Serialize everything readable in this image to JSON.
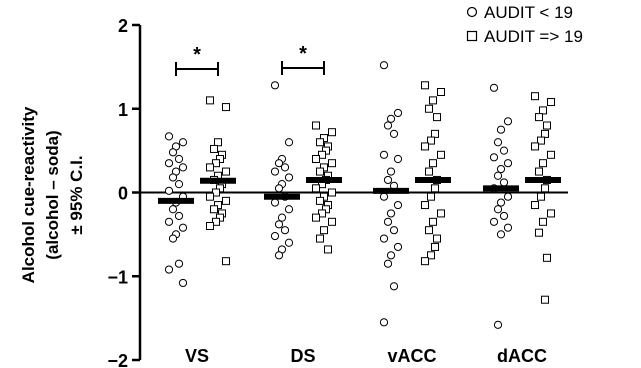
{
  "chart_data": {
    "type": "scatter",
    "title": "",
    "ylabel_lines": [
      "Alcohol cue-reactivity",
      "(alcohol – soda)",
      "± 95% C.I."
    ],
    "ylim": [
      -2,
      2
    ],
    "yticks": [
      2,
      1,
      0,
      -1,
      -2
    ],
    "ytick_labels": [
      "2",
      "1",
      "0",
      "−1",
      "−2"
    ],
    "categories": [
      "VS",
      "DS",
      "vACC",
      "dACC"
    ],
    "legend": {
      "placement": "top-right",
      "entries": [
        {
          "name": "AUDIT < 19",
          "marker": "circle"
        },
        {
          "name": "AUDIT => 19",
          "marker": "square"
        }
      ]
    },
    "series": [
      {
        "name": "AUDIT < 19",
        "marker": "circle",
        "means": [
          -0.1,
          -0.05,
          0.02,
          0.05
        ],
        "points": [
          [
            0.67,
            0.6,
            0.55,
            0.48,
            0.4,
            0.35,
            0.3,
            0.25,
            0.18,
            0.1,
            0.02,
            -0.05,
            -0.12,
            -0.2,
            -0.28,
            -0.35,
            -0.42,
            -0.5,
            -0.55,
            -0.85,
            -0.92,
            -1.08
          ],
          [
            1.28,
            0.6,
            0.4,
            0.35,
            0.3,
            0.25,
            0.18,
            0.1,
            0.05,
            -0.05,
            -0.12,
            -0.2,
            -0.3,
            -0.38,
            -0.45,
            -0.52,
            -0.6,
            -0.68,
            -0.75
          ],
          [
            1.52,
            0.95,
            0.88,
            0.8,
            0.7,
            0.45,
            0.4,
            0.25,
            0.15,
            0.08,
            -0.05,
            -0.15,
            -0.25,
            -0.35,
            -0.45,
            -0.55,
            -0.65,
            -0.75,
            -0.85,
            -1.12,
            -1.55
          ],
          [
            1.25,
            0.85,
            0.75,
            0.6,
            0.5,
            0.42,
            0.35,
            0.28,
            0.2,
            0.12,
            0.05,
            -0.05,
            -0.12,
            -0.2,
            -0.28,
            -0.35,
            -0.42,
            -0.5,
            -1.58
          ]
        ]
      },
      {
        "name": "AUDIT => 19",
        "marker": "square",
        "means": [
          0.14,
          0.15,
          0.15,
          0.15
        ],
        "points": [
          [
            1.1,
            1.02,
            0.6,
            0.52,
            0.45,
            0.4,
            0.35,
            0.3,
            0.25,
            0.2,
            0.15,
            0.1,
            0.05,
            0.0,
            -0.05,
            -0.1,
            -0.15,
            -0.2,
            -0.25,
            -0.3,
            -0.35,
            -0.4,
            -0.82
          ],
          [
            0.8,
            0.72,
            0.65,
            0.6,
            0.55,
            0.5,
            0.45,
            0.4,
            0.35,
            0.3,
            0.25,
            0.2,
            0.15,
            0.1,
            0.05,
            0.0,
            -0.05,
            -0.1,
            -0.15,
            -0.2,
            -0.25,
            -0.3,
            -0.35,
            -0.45,
            -0.55,
            -0.68
          ],
          [
            1.28,
            1.2,
            1.1,
            1.0,
            0.9,
            0.7,
            0.62,
            0.55,
            0.45,
            0.35,
            0.25,
            0.15,
            0.05,
            -0.05,
            -0.15,
            -0.25,
            -0.35,
            -0.45,
            -0.55,
            -0.65,
            -0.75,
            -0.82
          ],
          [
            1.15,
            1.08,
            0.98,
            0.9,
            0.8,
            0.7,
            0.62,
            0.55,
            0.45,
            0.35,
            0.25,
            0.15,
            0.05,
            -0.05,
            -0.15,
            -0.25,
            -0.35,
            -0.48,
            -0.78,
            -1.28
          ]
        ]
      }
    ],
    "significance": [
      {
        "category": "VS",
        "label": "*"
      },
      {
        "category": "DS",
        "label": "*"
      }
    ]
  }
}
